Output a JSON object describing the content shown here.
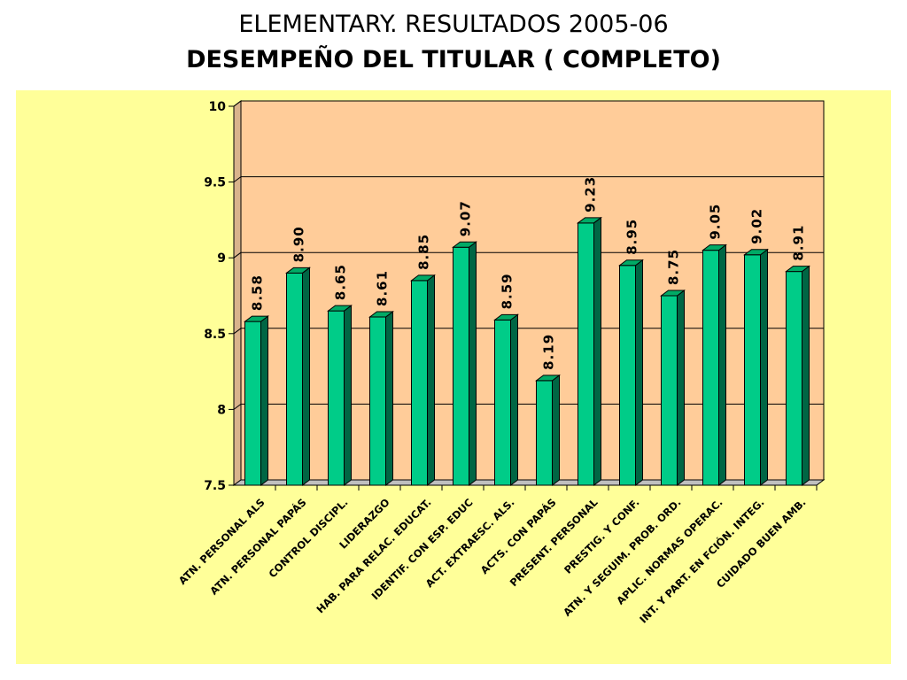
{
  "header": {
    "title": "ELEMENTARY. RESULTADOS 2005-06",
    "subtitle": "DESEMPEÑO DEL TITULAR ( COMPLETO)"
  },
  "colors": {
    "panel_background": "#ffff99",
    "plot_background": "#ffcc99",
    "bar_front": "#00cc88",
    "bar_top": "#00aa66",
    "bar_side": "#006644",
    "gridline": "#000000",
    "text": "#000000"
  },
  "chart_data": {
    "type": "bar",
    "three_d": true,
    "title": "ELEMENTARY. RESULTADOS 2005-06",
    "subtitle": "DESEMPEÑO DEL TITULAR ( COMPLETO)",
    "xlabel": "",
    "ylabel": "",
    "ylim": [
      7.5,
      10
    ],
    "yticks": [
      "7.5",
      "8",
      "8.5",
      "9",
      "9.5",
      "10"
    ],
    "yticks_values": [
      7.5,
      8,
      8.5,
      9,
      9.5,
      10
    ],
    "grid": true,
    "legend": "none",
    "categories": [
      "ATN. PERSONAL ALS",
      "ATN. PERSONAL PAPÁS",
      "CONTROL DISCIPL.",
      "LIDERAZGO",
      "HAB. PARA RELAC. EDUCAT.",
      "IDENTIF. CON ESP. EDUC",
      "ACT. EXTRAESC. ALS.",
      "ACTS. CON PAPÁS",
      "PRESENT. PERSONAL",
      "PRESTIG. Y CONF.",
      "ATN. Y SEGUIM. PROB. ORD.",
      "APLIC. NORMAS OPERAC.",
      "INT. Y PART. EN FCIÓN. INTEG.",
      "CUIDADO BUEN AMB."
    ],
    "values": [
      8.58,
      8.9,
      8.65,
      8.61,
      8.85,
      9.07,
      8.59,
      8.19,
      9.23,
      8.95,
      8.75,
      9.05,
      9.02,
      8.91
    ],
    "data_labels": [
      "8.58",
      "8.90",
      "8.65",
      "8.61",
      "8.85",
      "9.07",
      "8.59",
      "8.19",
      "9.23",
      "8.95",
      "8.75",
      "9.05",
      "9.02",
      "8.91"
    ]
  }
}
